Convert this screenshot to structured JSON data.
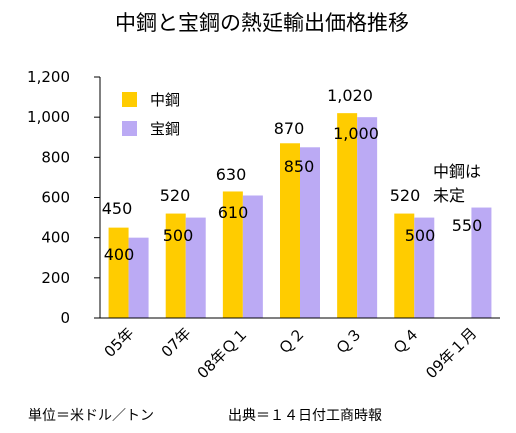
{
  "chart_data": {
    "type": "bar",
    "title": "中鋼と宝鋼の熱延輸出価格推移",
    "categories": [
      "05年",
      "07年",
      "08年Ｑ１",
      "Ｑ２",
      "Ｑ３",
      "Ｑ４",
      "09年１月"
    ],
    "series": [
      {
        "name": "中鋼",
        "color": "#FFCC00",
        "values": [
          450,
          520,
          630,
          870,
          1020,
          520,
          null
        ]
      },
      {
        "name": "宝鋼",
        "color": "#BBAAF4",
        "values": [
          400,
          500,
          610,
          850,
          1000,
          500,
          550
        ]
      }
    ],
    "data_labels": [
      [
        "450",
        "520",
        "630",
        "870",
        "1,020",
        "520",
        null
      ],
      [
        "400",
        "500",
        "610",
        "850",
        "1,000",
        "500",
        "550"
      ]
    ],
    "ylim": [
      0,
      1200
    ],
    "yticks": [
      0,
      200,
      400,
      600,
      800,
      1000,
      1200
    ],
    "ytick_labels": [
      "0",
      "200",
      "400",
      "600",
      "800",
      "1,000",
      "1,200"
    ],
    "grid": false,
    "legend_position": "top-left",
    "annotation": [
      "中鋼は",
      "未定"
    ],
    "xlabel": "",
    "ylabel": ""
  },
  "footer": {
    "unit": "単位＝米ドル／トン",
    "source": "出典＝１４日付工商時報"
  }
}
